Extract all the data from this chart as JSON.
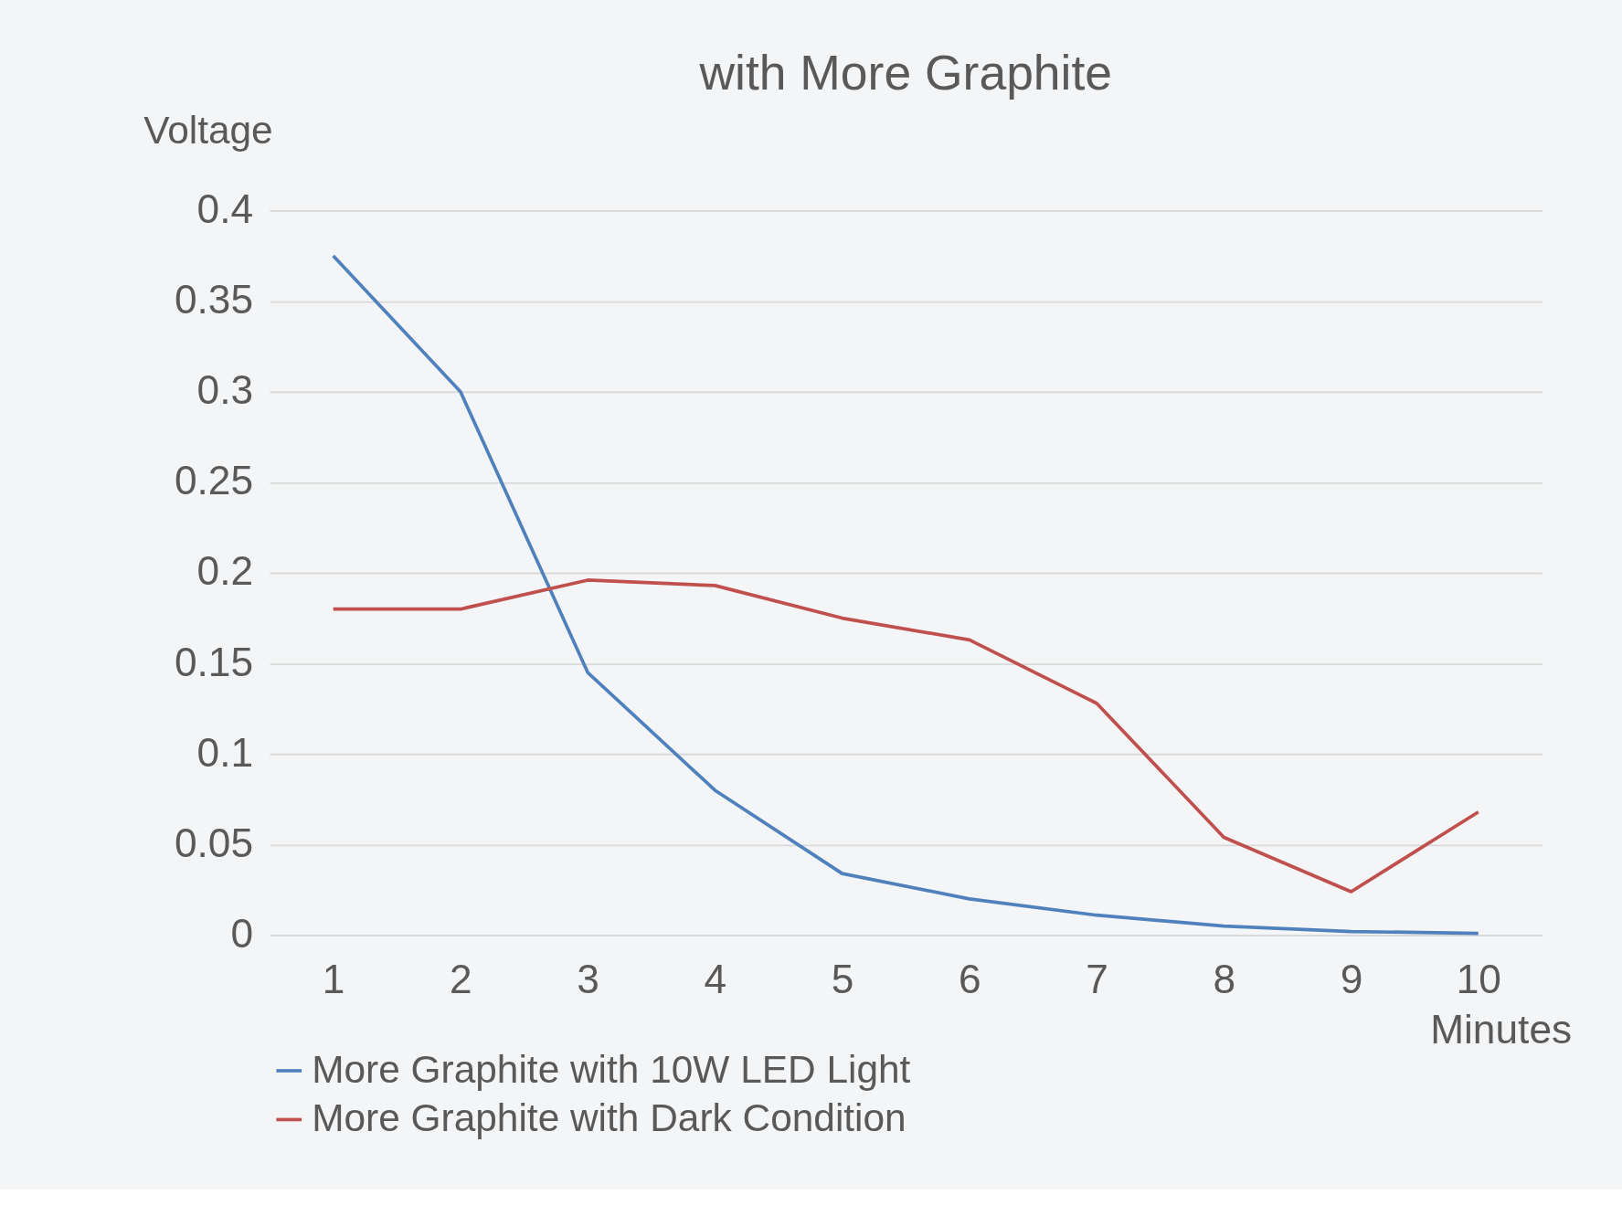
{
  "chart_data": {
    "type": "line",
    "title": "with More Graphite",
    "xlabel": "Minutes",
    "ylabel": "Voltage",
    "categories": [
      "1",
      "2",
      "3",
      "4",
      "5",
      "6",
      "7",
      "8",
      "9",
      "10"
    ],
    "series": [
      {
        "name": "More Graphite with 10W LED Light",
        "color": "#4f81bd",
        "values": [
          0.375,
          0.3,
          0.145,
          0.08,
          0.034,
          0.02,
          0.011,
          0.005,
          0.002,
          0.001
        ]
      },
      {
        "name": "More Graphite with Dark Condition",
        "color": "#c0504d",
        "values": [
          0.18,
          0.18,
          0.196,
          0.193,
          0.175,
          0.163,
          0.128,
          0.054,
          0.024,
          0.068
        ]
      }
    ],
    "ylim": [
      0,
      0.4
    ],
    "yticks": [
      0,
      0.05,
      0.1,
      0.15,
      0.2,
      0.25,
      0.3,
      0.35,
      0.4
    ],
    "grid": "y",
    "legend": "bottom",
    "marker": "none",
    "line_style": "solid"
  }
}
